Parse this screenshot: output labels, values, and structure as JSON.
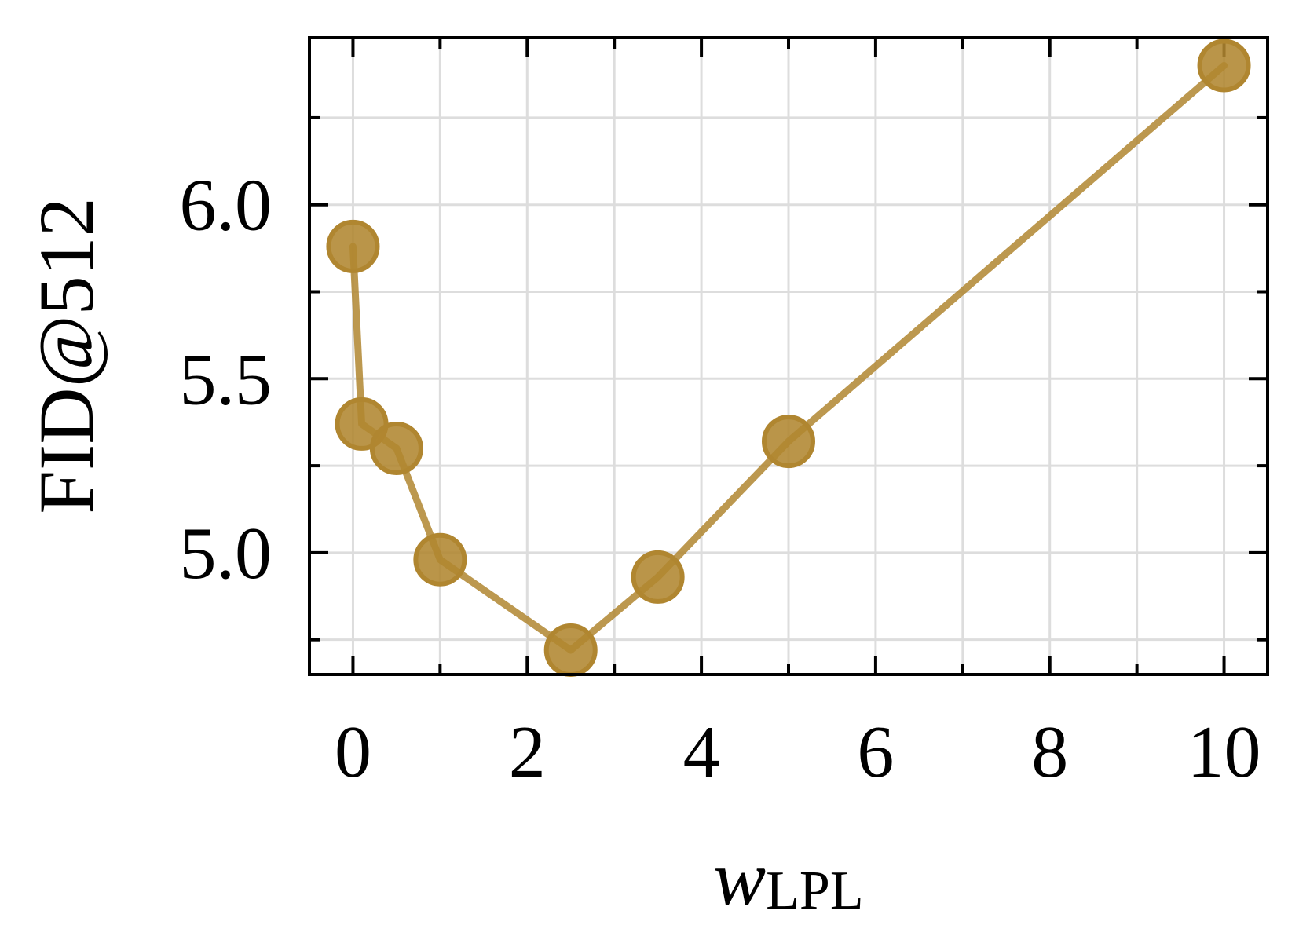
{
  "chart_data": {
    "type": "line",
    "title": "",
    "xlabel": {
      "main": "w",
      "subscript": "LPL"
    },
    "ylabel": "FID@512",
    "x": [
      0,
      0.1,
      0.5,
      1,
      2.5,
      3.5,
      5,
      10
    ],
    "series": [
      {
        "values": [
          5.88,
          5.37,
          5.3,
          4.98,
          4.72,
          4.93,
          5.32,
          6.4
        ],
        "color": "#b08630"
      }
    ],
    "xlim": [
      -0.5,
      10.5
    ],
    "ylim": [
      4.65,
      6.48
    ],
    "xticks": [
      0,
      2,
      4,
      6,
      8,
      10
    ],
    "xtick_labels": [
      "0",
      "2",
      "4",
      "6",
      "8",
      "10"
    ],
    "xminor_ticks": [
      1,
      3,
      5,
      7,
      9
    ],
    "yticks": [
      5.0,
      5.5,
      6.0
    ],
    "ytick_labels": [
      "5.0",
      "5.5",
      "6.0"
    ],
    "yminor_ticks": [
      4.75,
      5.25,
      5.75,
      6.25
    ],
    "grid": true,
    "legend": "none"
  }
}
